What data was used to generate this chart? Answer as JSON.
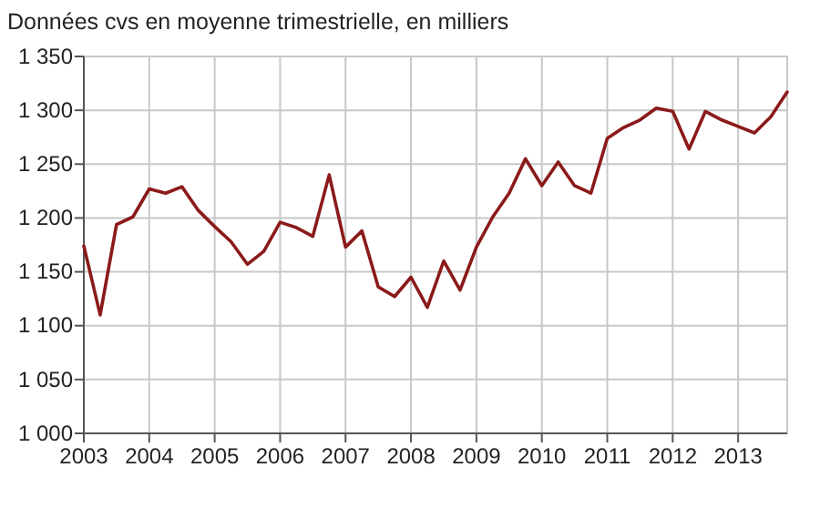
{
  "chart_data": {
    "type": "line",
    "title": "Données cvs en moyenne trimestrielle, en milliers",
    "x": [
      2003,
      2003.25,
      2003.5,
      2003.75,
      2004,
      2004.25,
      2004.5,
      2004.75,
      2005,
      2005.25,
      2005.5,
      2005.75,
      2006,
      2006.25,
      2006.5,
      2006.75,
      2007,
      2007.25,
      2007.5,
      2007.75,
      2008,
      2008.25,
      2008.5,
      2008.75,
      2009,
      2009.25,
      2009.5,
      2009.75,
      2010,
      2010.25,
      2010.5,
      2010.75,
      2011,
      2011.25,
      2011.5,
      2011.75,
      2012,
      2012.25,
      2012.5,
      2012.75,
      2013,
      2013.25,
      2013.5,
      2013.75
    ],
    "series": [
      {
        "color": "#8b1a1a",
        "values": [
          1174,
          1110,
          1194,
          1201,
          1227,
          1223,
          1229,
          1207,
          1192,
          1178,
          1157,
          1169,
          1196,
          1191,
          1183,
          1240,
          1173,
          1188,
          1136,
          1127,
          1145,
          1117,
          1160,
          1133,
          1173,
          1201,
          1223,
          1255,
          1230,
          1252,
          1230,
          1223,
          1274,
          1284,
          1291,
          1302,
          1299,
          1264,
          1299,
          1291,
          1285,
          1279,
          1294,
          1317
        ]
      }
    ],
    "xlim": [
      2003,
      2013.75
    ],
    "xticks": [
      2003,
      2004,
      2005,
      2006,
      2007,
      2008,
      2009,
      2010,
      2011,
      2012,
      2013
    ],
    "ylim": [
      1000,
      1350
    ],
    "yticks": [
      {
        "value": 1000,
        "label": "1 000"
      },
      {
        "value": 1050,
        "label": "1 050"
      },
      {
        "value": 1100,
        "label": "1 100"
      },
      {
        "value": 1150,
        "label": "1 150"
      },
      {
        "value": 1200,
        "label": "1 200"
      },
      {
        "value": 1250,
        "label": "1 250"
      },
      {
        "value": 1300,
        "label": "1 300"
      },
      {
        "value": 1350,
        "label": "1 350"
      }
    ],
    "grid": true,
    "marker": "none",
    "line_style": "solid"
  }
}
